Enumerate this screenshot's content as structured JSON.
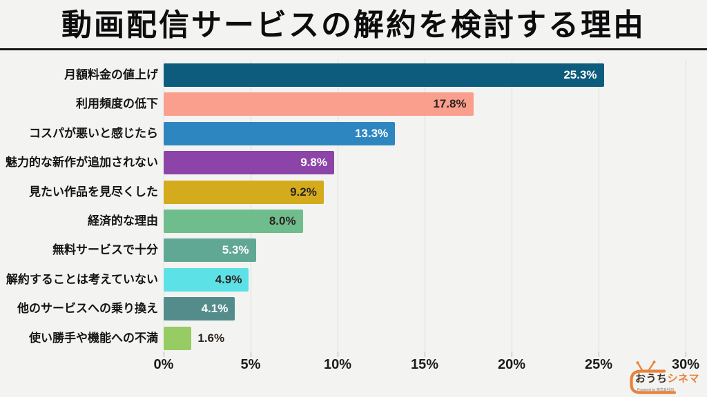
{
  "page": {
    "background": "#f3f4f1"
  },
  "header": {
    "title": "動画配信サービスの解約を検討する理由"
  },
  "chart_data": {
    "type": "bar",
    "orientation": "horizontal",
    "title": "動画配信サービスの解約を検討する理由",
    "categories": [
      "月額料金の値上げ",
      "利用頻度の低下",
      "コスパが悪いと感じたら",
      "魅力的な新作が追加されない",
      "見たい作品を見尽くした",
      "経済的な理由",
      "無料サービスで十分",
      "解約することは考えていない",
      "他のサービスへの乗り換え",
      "使い勝手や機能への不満"
    ],
    "values": [
      25.3,
      17.8,
      13.3,
      9.8,
      9.2,
      8.0,
      5.3,
      4.9,
      4.1,
      1.6
    ],
    "value_labels": [
      "25.3%",
      "17.8%",
      "13.3%",
      "9.8%",
      "9.2%",
      "8.0%",
      "5.3%",
      "4.9%",
      "4.1%",
      "1.6%"
    ],
    "bar_colors": [
      "#0d5c7d",
      "#fa9e8d",
      "#2e86c1",
      "#8c44a8",
      "#d3ab1c",
      "#6fbd8d",
      "#60a794",
      "#5ce1e6",
      "#548b8b",
      "#97cb64"
    ],
    "value_label_colors": [
      "#ffffff",
      "#2d2420",
      "#ffffff",
      "#ffffff",
      "#2d2420",
      "#2d2420",
      "#ffffff",
      "#2d2420",
      "#ffffff",
      "#2d2420"
    ],
    "value_label_placement": [
      "inside",
      "inside",
      "inside",
      "inside",
      "inside",
      "inside",
      "inside",
      "inside",
      "inside",
      "outside"
    ],
    "x_ticks": [
      "0%",
      "5%",
      "10%",
      "15%",
      "20%",
      "25%",
      "30%"
    ],
    "x_tick_values": [
      0,
      5,
      10,
      15,
      20,
      25,
      30
    ],
    "xlim": [
      0,
      30
    ],
    "grid": true,
    "legend_position": "none"
  },
  "logo": {
    "brand_first": "おうち",
    "brand_second": "シネマ",
    "powered_by": "Powered by 株式会社25",
    "accent_color": "#e8813b"
  }
}
